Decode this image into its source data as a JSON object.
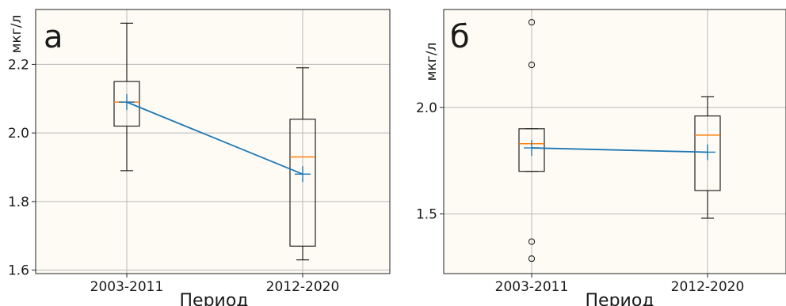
{
  "colors": {
    "plot_background": "#fdfbf4",
    "grid": "#b8b8b8",
    "box": "#222222",
    "median": "#ff7f0e",
    "mean": "#1f77b4"
  },
  "chart_data": [
    {
      "type": "box",
      "panel_label": "а",
      "ylabel": "мкг/л",
      "xlabel": "Период",
      "categories": [
        "2003-2011",
        "2012-2020"
      ],
      "ylim": [
        1.59,
        2.36
      ],
      "yticks": [
        1.6,
        1.8,
        2.0,
        2.2
      ],
      "ytick_labels": [
        "1.6",
        "1.8",
        "2.0",
        "2.2"
      ],
      "grid": true,
      "boxes": [
        {
          "category": "2003-2011",
          "whisker_low": 1.89,
          "q1": 2.02,
          "median": 2.09,
          "q3": 2.15,
          "whisker_high": 2.32,
          "mean": 2.09,
          "outliers": []
        },
        {
          "category": "2012-2020",
          "whisker_low": 1.63,
          "q1": 1.67,
          "median": 1.93,
          "q3": 2.04,
          "whisker_high": 2.19,
          "mean": 1.88,
          "outliers": []
        }
      ]
    },
    {
      "type": "box",
      "panel_label": "б",
      "ylabel": "мкг/л",
      "xlabel": "Период",
      "categories": [
        "2003-2011",
        "2012-2020"
      ],
      "ylim": [
        1.22,
        2.46
      ],
      "yticks": [
        1.5,
        2.0
      ],
      "ytick_labels": [
        "1.5",
        "2.0"
      ],
      "grid": true,
      "boxes": [
        {
          "category": "2003-2011",
          "whisker_low": 1.7,
          "q1": 1.7,
          "median": 1.83,
          "q3": 1.9,
          "whisker_high": 1.9,
          "mean": 1.81,
          "outliers": [
            1.29,
            1.37,
            2.2,
            2.4
          ]
        },
        {
          "category": "2012-2020",
          "whisker_low": 1.48,
          "q1": 1.61,
          "median": 1.87,
          "q3": 1.96,
          "whisker_high": 2.05,
          "mean": 1.79,
          "outliers": []
        }
      ]
    }
  ]
}
